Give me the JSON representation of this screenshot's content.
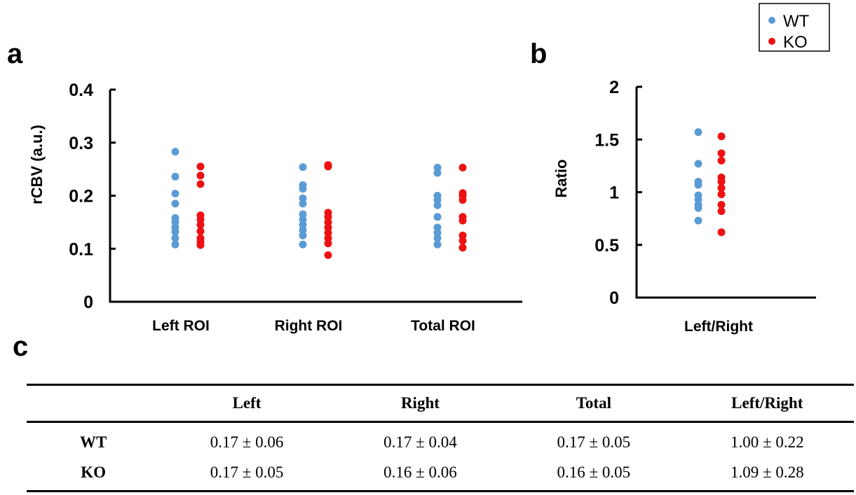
{
  "panels": {
    "a": "a",
    "b": "b",
    "c": "c"
  },
  "legend": [
    {
      "label": "WT",
      "color": "#5b9bd5"
    },
    {
      "label": "KO",
      "color": "#ee1111"
    }
  ],
  "chart_data": [
    {
      "type": "scatter",
      "panel": "a",
      "ylabel": "rCBV (a.u.)",
      "ylim": [
        0,
        0.4
      ],
      "yticks": [
        "0",
        "0.1",
        "0.2",
        "0.3",
        "0.4"
      ],
      "categories": [
        "Left ROI",
        "Right ROI",
        "Total ROI"
      ],
      "series": [
        {
          "name": "WT",
          "color": "#5b9bd5",
          "values": [
            [
              0.283,
              0.236,
              0.204,
              0.185,
              0.158,
              0.15,
              0.14,
              0.132,
              0.12,
              0.108
            ],
            [
              0.254,
              0.22,
              0.213,
              0.195,
              0.185,
              0.165,
              0.155,
              0.145,
              0.135,
              0.125,
              0.108
            ],
            [
              0.253,
              0.243,
              0.2,
              0.192,
              0.182,
              0.16,
              0.14,
              0.13,
              0.12,
              0.108
            ]
          ]
        },
        {
          "name": "KO",
          "color": "#ee1111",
          "values": [
            [
              0.255,
              0.238,
              0.222,
              0.163,
              0.155,
              0.145,
              0.133,
              0.12,
              0.113,
              0.107
            ],
            [
              0.258,
              0.255,
              0.168,
              0.16,
              0.15,
              0.14,
              0.13,
              0.12,
              0.11,
              0.088
            ],
            [
              0.253,
              0.205,
              0.2,
              0.192,
              0.16,
              0.153,
              0.125,
              0.115,
              0.102
            ]
          ]
        }
      ]
    },
    {
      "type": "scatter",
      "panel": "b",
      "ylabel": "Ratio",
      "ylim": [
        0,
        2
      ],
      "yticks": [
        "0",
        "0.5",
        "1",
        "1.5",
        "2"
      ],
      "categories": [
        "Left/Right"
      ],
      "series": [
        {
          "name": "WT",
          "color": "#5b9bd5",
          "values": [
            [
              1.57,
              1.27,
              1.1,
              1.07,
              0.97,
              0.93,
              0.88,
              0.85,
              0.73
            ]
          ]
        },
        {
          "name": "KO",
          "color": "#ee1111",
          "values": [
            [
              1.53,
              1.37,
              1.3,
              1.14,
              1.1,
              1.04,
              0.98,
              0.88,
              0.82,
              0.62
            ]
          ]
        }
      ]
    }
  ],
  "table": {
    "headers": [
      "",
      "Left",
      "Right",
      "Total",
      "Left/Right"
    ],
    "rows": [
      [
        "WT",
        "0.17 ± 0.06",
        "0.17 ± 0.04",
        "0.17 ± 0.05",
        "1.00 ± 0.22"
      ],
      [
        "KO",
        "0.17 ± 0.05",
        "0.16 ± 0.06",
        "0.16 ± 0.05",
        "1.09 ± 0.28"
      ]
    ]
  }
}
